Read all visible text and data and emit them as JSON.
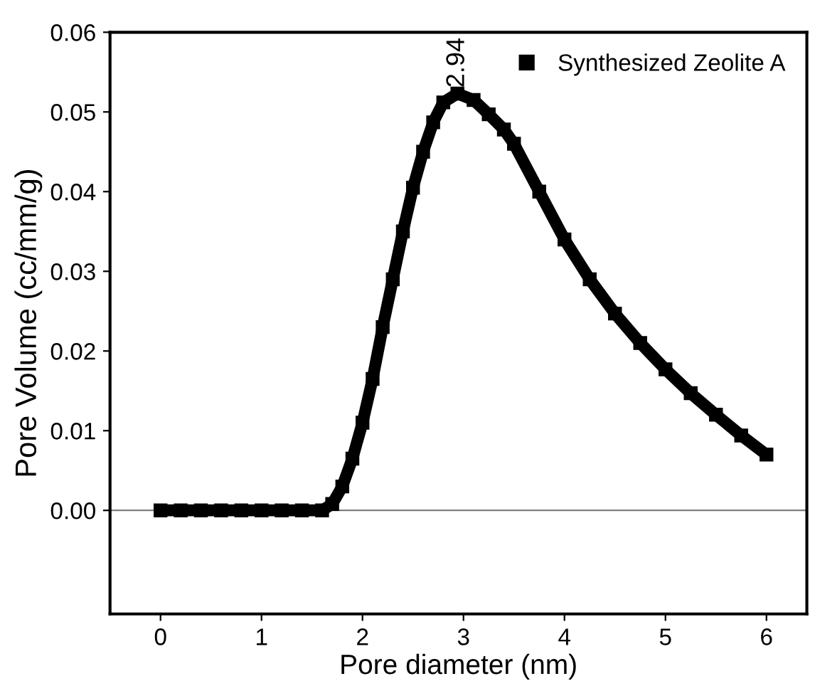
{
  "chart_data": {
    "type": "line",
    "xlabel": "Pore diameter (nm)",
    "ylabel": "Pore Volume (cc/mm/g)",
    "xlim": [
      -0.5,
      6.4
    ],
    "ylim": [
      -0.013,
      0.06
    ],
    "xticks": [
      0,
      1,
      2,
      3,
      4,
      5,
      6
    ],
    "yticks": [
      {
        "value": 0,
        "label": "0.00"
      },
      {
        "value": 0.01,
        "label": "0.01"
      },
      {
        "value": 0.02,
        "label": "0.02"
      },
      {
        "value": 0.03,
        "label": "0.03"
      },
      {
        "value": 0.04,
        "label": "0.04"
      },
      {
        "value": 0.05,
        "label": "0.05"
      },
      {
        "value": 0.06,
        "label": "0.06"
      }
    ],
    "grid": false,
    "legend": "top right",
    "marker": "square",
    "ref_lines": [
      {
        "axis": "y",
        "value": 0,
        "color": "#808080"
      }
    ],
    "annotations": [
      {
        "text": "2.94",
        "x": 2.94,
        "y": 0.0523
      }
    ],
    "series": [
      {
        "name": "Synthesized Zeolite A",
        "color": "#000000",
        "x": [
          0,
          0.2,
          0.4,
          0.6,
          0.8,
          1.0,
          1.2,
          1.4,
          1.6,
          1.7,
          1.8,
          1.9,
          2.0,
          2.1,
          2.2,
          2.3,
          2.4,
          2.5,
          2.6,
          2.7,
          2.8,
          2.94,
          3.1,
          3.25,
          3.4,
          3.5,
          3.75,
          4.0,
          4.25,
          4.5,
          4.75,
          5.0,
          5.25,
          5.5,
          5.75,
          6.0
        ],
        "values": [
          0,
          0,
          0,
          0,
          0,
          0,
          0,
          0,
          0,
          0.0008,
          0.003,
          0.0065,
          0.011,
          0.0165,
          0.023,
          0.029,
          0.035,
          0.0405,
          0.045,
          0.0487,
          0.0512,
          0.0523,
          0.0515,
          0.0497,
          0.0478,
          0.046,
          0.04,
          0.034,
          0.029,
          0.0247,
          0.021,
          0.0177,
          0.0147,
          0.012,
          0.0094,
          0.007
        ]
      }
    ]
  }
}
